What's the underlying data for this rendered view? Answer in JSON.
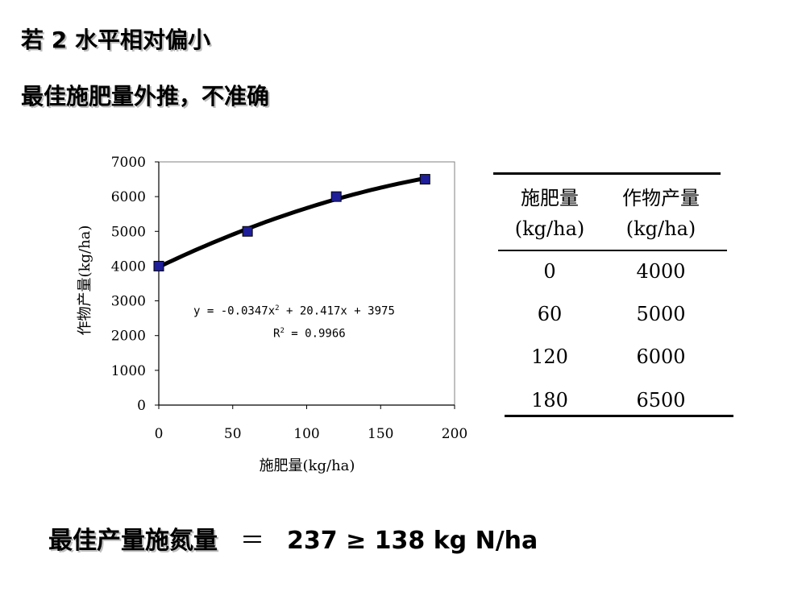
{
  "slide": {
    "title1": "若 2 水平相对偏小",
    "title2": "最佳施肥量外推，不准确",
    "bottom": {
      "label": "最佳产量施氮量",
      "equals": "＝",
      "value": "237 ≥ 138 kg N/ha"
    }
  },
  "chart_data": {
    "type": "scatter",
    "xlabel": "施肥量(kg/ha)",
    "ylabel": "作物产量(kg/ha)",
    "xlim": [
      0,
      200
    ],
    "ylim": [
      0,
      7000
    ],
    "xticks": [
      "0",
      "50",
      "100",
      "150",
      "200"
    ],
    "yticks": [
      "0",
      "1000",
      "2000",
      "3000",
      "4000",
      "5000",
      "6000",
      "7000"
    ],
    "grid": false,
    "series": [
      {
        "x": [
          0,
          60,
          120,
          180
        ],
        "y": [
          4000,
          5000,
          6000,
          6500
        ]
      }
    ],
    "trendline": {
      "coefficients": [
        -0.0347,
        20.417,
        3975
      ],
      "x_range": [
        0,
        180
      ],
      "equation_parts": [
        "y = -0.0347x",
        "2",
        " + 20.417x + 3975"
      ],
      "r2_parts": [
        "R",
        "2",
        " = 0.9966"
      ]
    },
    "marker_color": "#1f1f9a"
  },
  "table": {
    "headers": [
      [
        "施肥量",
        "(kg/ha)"
      ],
      [
        "作物产量",
        "(kg/ha)"
      ]
    ],
    "rows": [
      [
        "0",
        "4000"
      ],
      [
        "60",
        "5000"
      ],
      [
        "120",
        "6000"
      ],
      [
        "180",
        "6500"
      ]
    ]
  }
}
